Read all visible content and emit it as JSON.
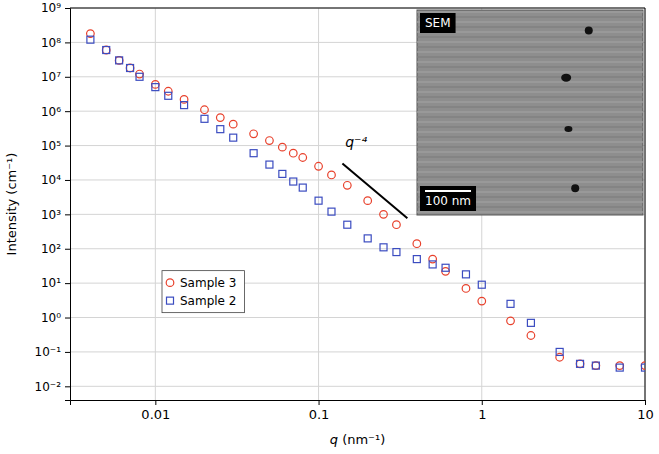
{
  "chart_data": {
    "type": "scatter",
    "x_label": "q (nm⁻¹)",
    "y_label": "Intensity (cm⁻¹)",
    "log": true,
    "grid": true,
    "legend": "left",
    "xlim": [
      0.003,
      10
    ],
    "xticks": [
      0.01,
      0.1,
      1,
      10
    ],
    "ylim": [
      0.004,
      1000000000
    ],
    "yticks": [
      {
        "value": 1000000000,
        "label": "10⁹"
      },
      {
        "value": 100000000,
        "label": "10⁸"
      },
      {
        "value": 10000000,
        "label": "10⁷"
      },
      {
        "value": 1000000,
        "label": "10⁶"
      },
      {
        "value": 100000,
        "label": "10⁵"
      },
      {
        "value": 10000,
        "label": "10⁴"
      },
      {
        "value": 1000,
        "label": "10³"
      },
      {
        "value": 100,
        "label": "10²"
      },
      {
        "value": 10,
        "label": "10¹"
      },
      {
        "value": 1,
        "label": "10⁰"
      },
      {
        "value": 0.1,
        "label": "10⁻¹"
      },
      {
        "value": 0.01,
        "label": "10⁻²"
      }
    ],
    "x": [
      0.004,
      0.005,
      0.006,
      0.007,
      0.008,
      0.01,
      0.012,
      0.015,
      0.02,
      0.025,
      0.03,
      0.04,
      0.05,
      0.06,
      0.07,
      0.08,
      0.1,
      0.12,
      0.15,
      0.2,
      0.25,
      0.3,
      0.4,
      0.5,
      0.6,
      0.8,
      1,
      1.5,
      2,
      3,
      4,
      5,
      7,
      10
    ],
    "series": [
      {
        "name": "Sample 3",
        "color": "#e8412c",
        "marker": "circle",
        "values": [
          180000000,
          60000000,
          30000000,
          18000000,
          12000000,
          6000000,
          3800000,
          2200000,
          1100000,
          650000,
          420000,
          220000,
          140000,
          90000,
          60000,
          45000,
          25000,
          14000,
          7000,
          2500,
          1000,
          500,
          140,
          50,
          22,
          7,
          3,
          0.8,
          0.3,
          0.07,
          0.045,
          0.04,
          0.04,
          0.04
        ]
      },
      {
        "name": "Sample 2",
        "color": "#3b4cc0",
        "marker": "square",
        "values": [
          120000000,
          60000000,
          30000000,
          18000000,
          10000000,
          5000000,
          2800000,
          1500000,
          600000,
          300000,
          170000,
          60000,
          28000,
          15000,
          9000,
          6000,
          2500,
          1200,
          500,
          200,
          110,
          80,
          50,
          35,
          28,
          18,
          9,
          2.5,
          0.7,
          0.1,
          0.045,
          0.04,
          0.035,
          0.035
        ]
      }
    ],
    "annotations": [
      {
        "text": "q⁻⁴",
        "x": 0.17,
        "y": 90000
      }
    ],
    "guide_line": {
      "x": [
        0.14,
        0.35
      ],
      "y": [
        30000,
        770
      ]
    },
    "inset": {
      "label": "SEM",
      "scale_bar": "100 nm"
    }
  }
}
